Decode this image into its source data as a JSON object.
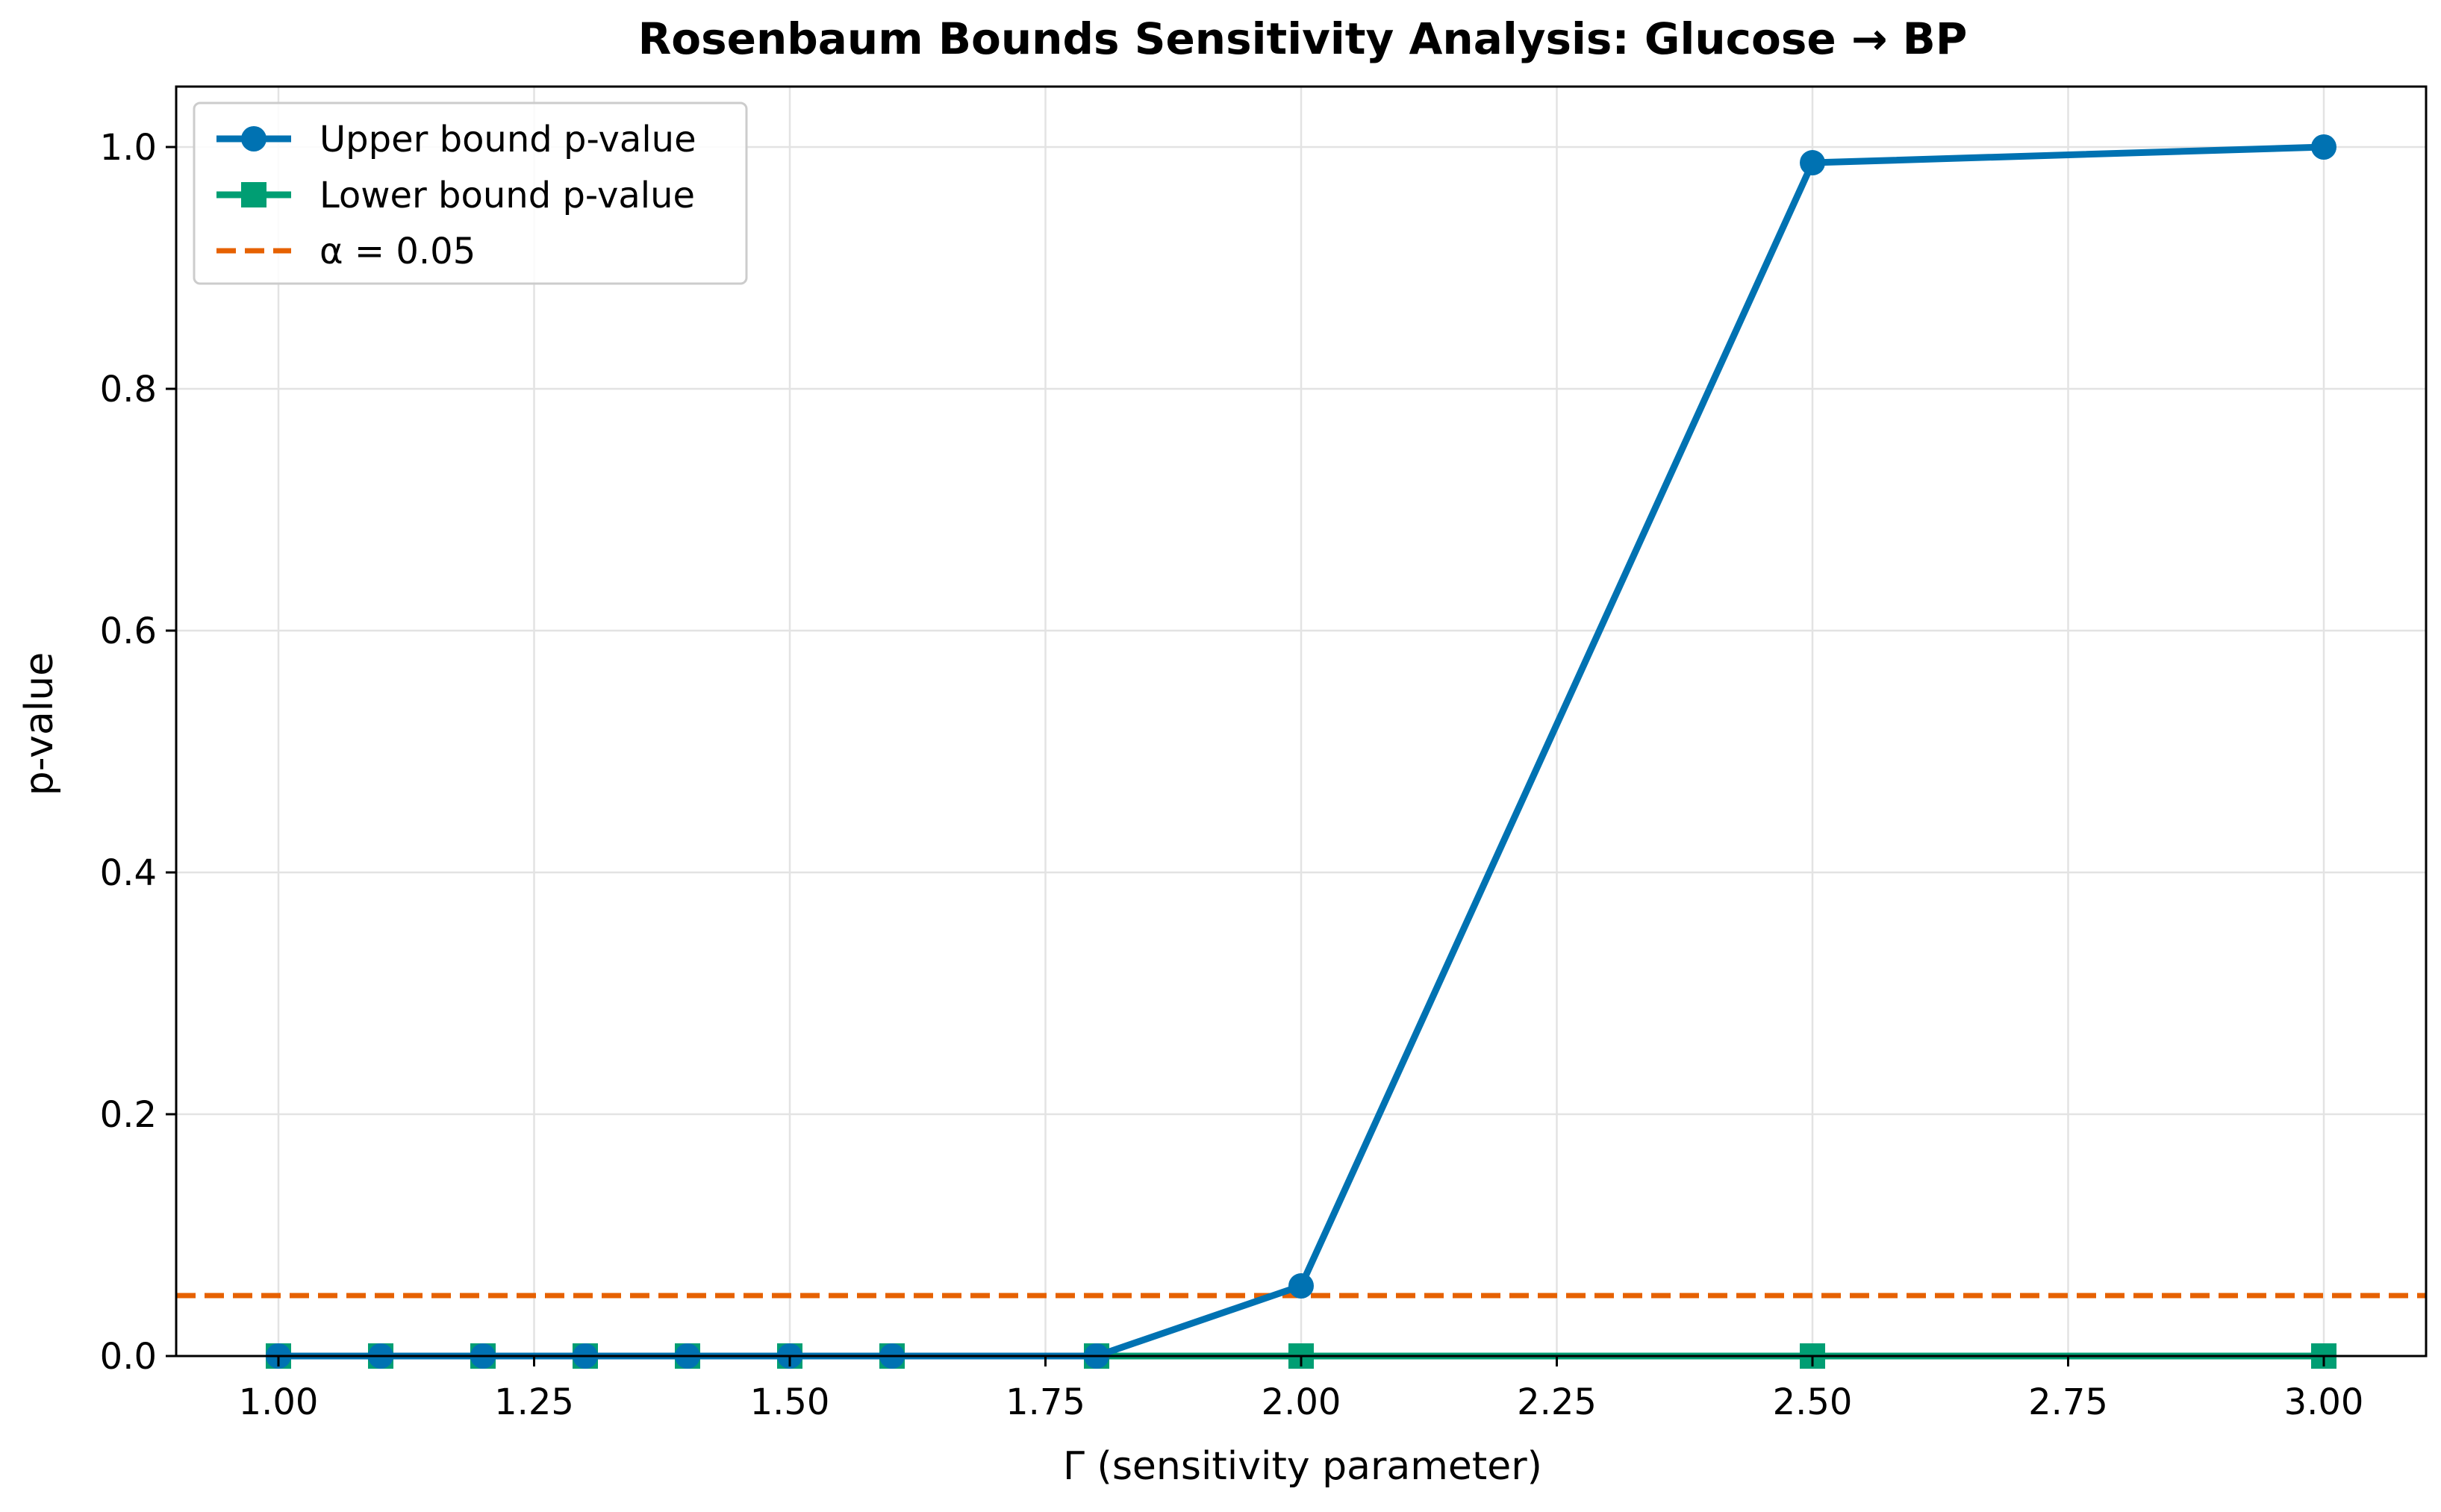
{
  "chart_data": {
    "type": "line",
    "title": "Rosenbaum Bounds Sensitivity Analysis: Glucose → BP",
    "xlabel": "Γ (sensitivity parameter)",
    "ylabel": "p-value",
    "xlim": [
      0.9,
      3.1
    ],
    "ylim": [
      0.0,
      1.05
    ],
    "xticks": [
      1.0,
      1.25,
      1.5,
      1.75,
      2.0,
      2.25,
      2.5,
      2.75,
      3.0
    ],
    "xtick_labels": [
      "1.00",
      "1.25",
      "1.50",
      "1.75",
      "2.00",
      "2.25",
      "2.50",
      "2.75",
      "3.00"
    ],
    "yticks": [
      0.0,
      0.2,
      0.4,
      0.6,
      0.8,
      1.0
    ],
    "ytick_labels": [
      "0.0",
      "0.2",
      "0.4",
      "0.6",
      "0.8",
      "1.0"
    ],
    "grid": true,
    "legend_position": "top-left",
    "series": [
      {
        "name": "Upper bound p-value",
        "color": "#0072B2",
        "marker": "circle",
        "x": [
          1.0,
          1.1,
          1.2,
          1.3,
          1.4,
          1.5,
          1.6,
          1.8,
          2.0,
          2.5,
          3.0
        ],
        "y": [
          0.0,
          0.0,
          0.0,
          0.0,
          0.0,
          0.0,
          0.0,
          0.0,
          0.058,
          0.987,
          1.0
        ]
      },
      {
        "name": "Lower bound p-value",
        "color": "#009E73",
        "marker": "square",
        "x": [
          1.0,
          1.1,
          1.2,
          1.3,
          1.4,
          1.5,
          1.6,
          1.8,
          2.0,
          2.5,
          3.0
        ],
        "y": [
          0.0,
          0.0,
          0.0,
          0.0,
          0.0,
          0.0,
          0.0,
          0.0,
          0.0,
          0.0,
          0.0
        ]
      }
    ],
    "reference_line": {
      "name": "α = 0.05",
      "y": 0.05,
      "color": "#E66100",
      "style": "dashed"
    }
  }
}
